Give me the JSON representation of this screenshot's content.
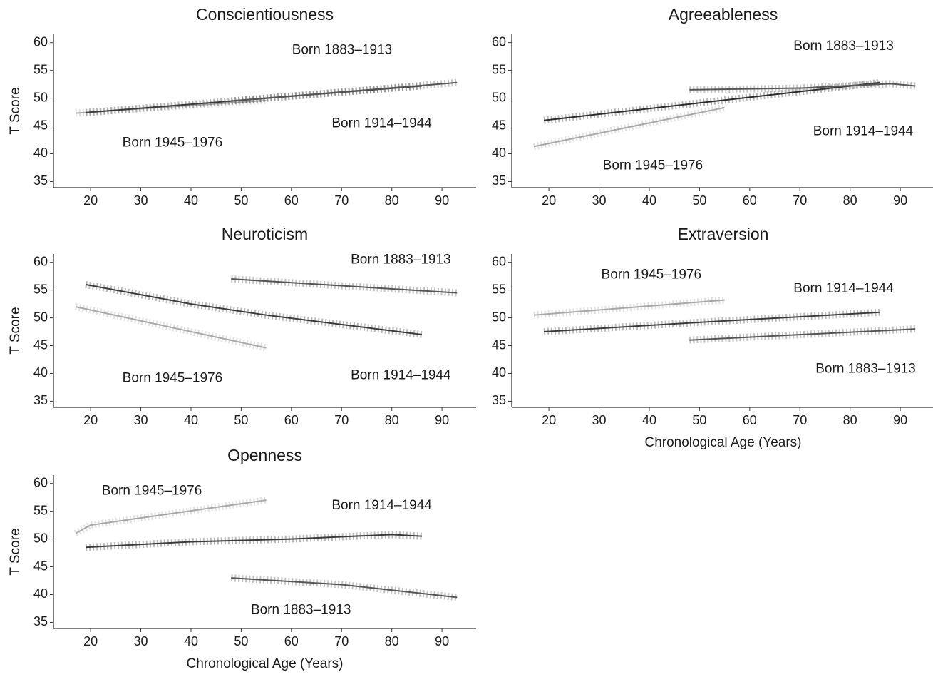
{
  "chart_data": [
    {
      "type": "line",
      "title": "Conscientiousness",
      "y_label": "T Score",
      "xlim": [
        12.6,
        96.8
      ],
      "xticks": [
        20,
        30,
        40,
        50,
        60,
        70,
        80,
        90
      ],
      "ylim": [
        33.9,
        61.5
      ],
      "yticks": [
        35,
        40,
        45,
        50,
        55,
        60
      ],
      "series": [
        {
          "name": "Born 1945–1976",
          "color": "#a8a8a8",
          "x": [
            17,
            55
          ],
          "values": [
            47.3,
            49.6
          ]
        },
        {
          "name": "Born 1914–1944",
          "color": "#3a3a3a",
          "x": [
            19,
            86
          ],
          "values": [
            47.4,
            52.2
          ]
        },
        {
          "name": "Born 1883–1913",
          "color": "#555555",
          "x": [
            48,
            93
          ],
          "values": [
            49.5,
            52.8
          ]
        }
      ]
    },
    {
      "type": "line",
      "title": "Agreeableness",
      "xlim": [
        12.6,
        96.8
      ],
      "xticks": [
        20,
        30,
        40,
        50,
        60,
        70,
        80,
        90
      ],
      "ylim": [
        33.9,
        61.5
      ],
      "yticks": [
        35,
        40,
        45,
        50,
        55,
        60
      ],
      "series": [
        {
          "name": "Born 1945–1976",
          "color": "#a8a8a8",
          "x": [
            17,
            55
          ],
          "values": [
            41.3,
            48.3
          ]
        },
        {
          "name": "Born 1914–1944",
          "color": "#2a2a2a",
          "x": [
            19,
            86
          ],
          "values": [
            46,
            52.8
          ]
        },
        {
          "name": "Born 1883–1913",
          "color": "#555555",
          "x": [
            48,
            70,
            88,
            93
          ],
          "values": [
            51.5,
            51.8,
            52.6,
            52.2
          ]
        }
      ]
    },
    {
      "type": "line",
      "title": "Neuroticism",
      "y_label": "T Score",
      "xlim": [
        12.6,
        96.8
      ],
      "xticks": [
        20,
        30,
        40,
        50,
        60,
        70,
        80,
        90
      ],
      "ylim": [
        33.9,
        61.5
      ],
      "yticks": [
        35,
        40,
        45,
        50,
        55,
        60
      ],
      "series": [
        {
          "name": "Born 1945–1976",
          "color": "#a8a8a8",
          "x": [
            17,
            55
          ],
          "values": [
            52,
            44.6
          ]
        },
        {
          "name": "Born 1914–1944",
          "color": "#3a3a3a",
          "x": [
            19,
            40,
            55,
            86
          ],
          "values": [
            56,
            52.5,
            50.5,
            47
          ]
        },
        {
          "name": "Born 1883–1913",
          "color": "#555555",
          "x": [
            48,
            93
          ],
          "values": [
            57,
            54.5
          ]
        }
      ]
    },
    {
      "type": "line",
      "title": "Extraversion",
      "x_label": "Chronological Age (Years)",
      "xlim": [
        12.6,
        96.8
      ],
      "xticks": [
        20,
        30,
        40,
        50,
        60,
        70,
        80,
        90
      ],
      "ylim": [
        33.9,
        61.5
      ],
      "yticks": [
        35,
        40,
        45,
        50,
        55,
        60
      ],
      "series": [
        {
          "name": "Born 1945–1976",
          "color": "#a8a8a8",
          "x": [
            17,
            55
          ],
          "values": [
            50.5,
            53.2
          ]
        },
        {
          "name": "Born 1914–1944",
          "color": "#3a3a3a",
          "x": [
            19,
            50,
            86
          ],
          "values": [
            47.5,
            49.2,
            51
          ]
        },
        {
          "name": "Born 1883–1913",
          "color": "#555555",
          "x": [
            48,
            93
          ],
          "values": [
            46,
            48
          ]
        }
      ]
    },
    {
      "type": "line",
      "title": "Openness",
      "y_label": "T Score",
      "x_label": "Chronological Age (Years)",
      "xlim": [
        12.6,
        96.8
      ],
      "xticks": [
        20,
        30,
        40,
        50,
        60,
        70,
        80,
        90
      ],
      "ylim": [
        33.9,
        61.5
      ],
      "yticks": [
        35,
        40,
        45,
        50,
        55,
        60
      ],
      "series": [
        {
          "name": "Born 1945–1976",
          "color": "#a8a8a8",
          "x": [
            17,
            20,
            55
          ],
          "values": [
            51,
            52.5,
            57
          ]
        },
        {
          "name": "Born 1914–1944",
          "color": "#3a3a3a",
          "x": [
            19,
            40,
            60,
            80,
            86
          ],
          "values": [
            48.5,
            49.5,
            50,
            50.8,
            50.5
          ]
        },
        {
          "name": "Born 1883–1913",
          "color": "#555555",
          "x": [
            48,
            70,
            93
          ],
          "values": [
            43,
            41.8,
            39.5
          ]
        }
      ]
    }
  ]
}
